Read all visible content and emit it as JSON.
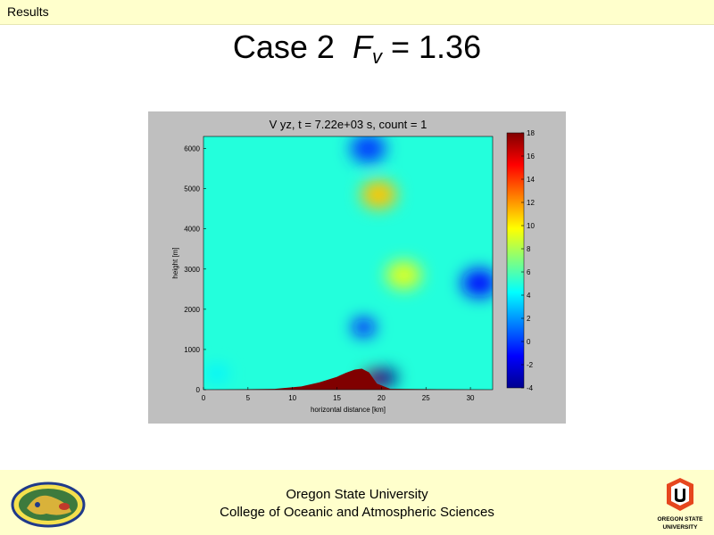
{
  "header": {
    "tab_label": "Results"
  },
  "slide": {
    "title_main": "Case 2",
    "title_var": "F",
    "title_sub": "v",
    "title_value": "= 1.36"
  },
  "chart_data": {
    "type": "heatmap",
    "title": "V yz, t = 7.22e+03 s, count = 1",
    "xlabel": "horizontal distance [km]",
    "ylabel": "height [m]",
    "xlim": [
      0,
      32.5
    ],
    "ylim": [
      0,
      6300
    ],
    "x_ticks": [
      0,
      5,
      10,
      15,
      20,
      25,
      30
    ],
    "y_ticks": [
      0,
      1000,
      2000,
      3000,
      4000,
      5000,
      6000
    ],
    "colorbar": {
      "min": -4,
      "max": 18,
      "ticks": [
        18,
        16,
        14,
        12,
        10,
        8,
        6,
        4,
        2,
        0,
        -2,
        -4
      ]
    },
    "terrain": {
      "x": [
        0,
        8,
        11,
        13,
        15,
        16,
        17,
        17.8,
        18.6,
        19.5,
        21,
        32.5
      ],
      "height": [
        0,
        20,
        80,
        180,
        320,
        420,
        500,
        520,
        430,
        150,
        20,
        0
      ]
    },
    "background_value": 5,
    "features": [
      {
        "label": "max-core",
        "x": 19.2,
        "height": 250,
        "value": 18
      },
      {
        "label": "min-lee",
        "x": 20.5,
        "height": 300,
        "value": -4
      },
      {
        "label": "upper-max",
        "x": 19.7,
        "height": 4850,
        "value": 11
      },
      {
        "label": "upper-min",
        "x": 18.5,
        "height": 6000,
        "value": 0
      },
      {
        "label": "mid-min",
        "x": 18.0,
        "height": 1550,
        "value": -1
      },
      {
        "label": "right-min",
        "x": 31.0,
        "height": 2650,
        "value": -1
      },
      {
        "label": "wave-max",
        "x": 22.5,
        "height": 2850,
        "value": 9
      },
      {
        "label": "left-low",
        "x": 1.5,
        "height": 400,
        "value": 4
      }
    ]
  },
  "footer": {
    "line1": "Oregon State University",
    "line2": "College of Oceanic and Atmospheric Sciences"
  },
  "logos": {
    "right_text_1": "OREGON STATE",
    "right_text_2": "UNIVERSITY"
  }
}
